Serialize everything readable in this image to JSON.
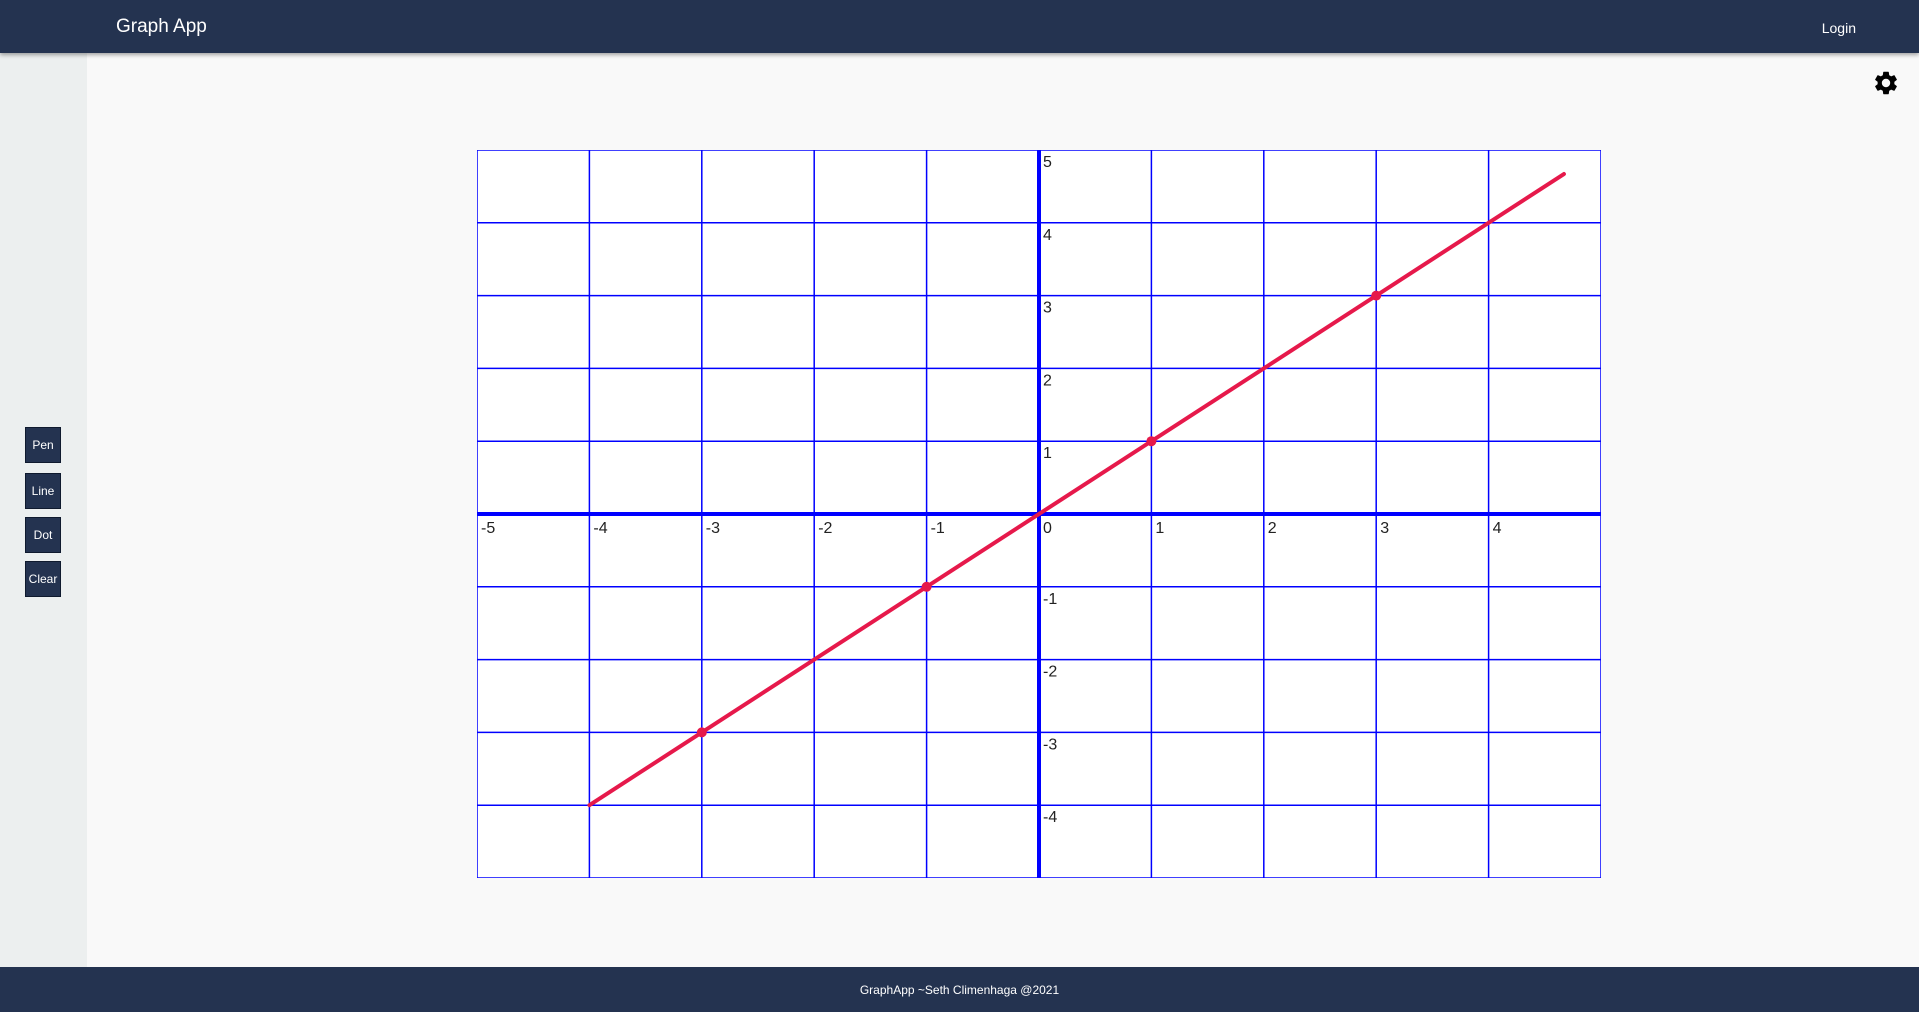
{
  "navbar": {
    "brand": "Graph App",
    "login_label": "Login"
  },
  "toolbar": {
    "tools": [
      {
        "id": "pen",
        "label": "Pen"
      },
      {
        "id": "line",
        "label": "Line"
      },
      {
        "id": "dot",
        "label": "Dot"
      },
      {
        "id": "clear",
        "label": "Clear"
      }
    ]
  },
  "settings": {
    "icon": "gear-icon"
  },
  "graph": {
    "x_ticks": [
      "-5",
      "-4",
      "-3",
      "-2",
      "-1",
      "0",
      "1",
      "2",
      "3",
      "4"
    ],
    "y_ticks": [
      "5",
      "4",
      "3",
      "2",
      "1",
      "-1",
      "-2",
      "-3",
      "-4"
    ],
    "x_range": [
      -5,
      5
    ],
    "y_range": [
      -5,
      5
    ],
    "grid_color": "#0000ff",
    "line_color": "#e6194b",
    "line": {
      "from": [
        -4,
        -4
      ],
      "to": [
        4.67,
        4.67
      ]
    },
    "dots": [
      [
        -3,
        -3
      ],
      [
        -1,
        -1
      ],
      [
        1,
        1
      ],
      [
        3,
        3
      ]
    ]
  },
  "footer": {
    "text": "GraphApp ~Seth Climenhaga @2021"
  }
}
